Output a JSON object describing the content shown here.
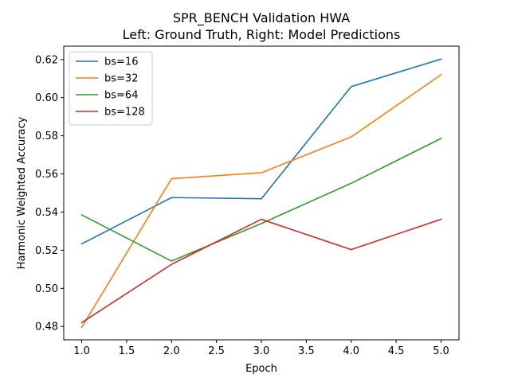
{
  "chart_data": {
    "type": "line",
    "title": "SPR_BENCH Validation HWA",
    "subtitle": "Left: Ground Truth, Right: Model Predictions",
    "xlabel": "Epoch",
    "ylabel": "Harmonic Weighted Accuracy",
    "xlim": [
      0.8,
      5.2
    ],
    "ylim": [
      0.473,
      0.627
    ],
    "x_ticks": [
      "1.0",
      "1.5",
      "2.0",
      "2.5",
      "3.0",
      "3.5",
      "4.0",
      "4.5",
      "5.0"
    ],
    "y_ticks": [
      "0.48",
      "0.50",
      "0.52",
      "0.54",
      "0.56",
      "0.58",
      "0.60",
      "0.62"
    ],
    "legend_position": "top-left",
    "grid": false,
    "x": [
      1,
      2,
      3,
      4,
      5
    ],
    "series": [
      {
        "name": "bs=16",
        "color": "#1f77b4",
        "values": [
          0.5233,
          0.5476,
          0.547,
          0.6058,
          0.6202
        ]
      },
      {
        "name": "bs=32",
        "color": "#ff7f0e",
        "values": [
          0.4795,
          0.5575,
          0.5606,
          0.5794,
          0.612
        ]
      },
      {
        "name": "bs=64",
        "color": "#2ca02c",
        "values": [
          0.5385,
          0.5143,
          0.534,
          0.5551,
          0.5786
        ]
      },
      {
        "name": "bs=128",
        "color": "#d62728",
        "values": [
          0.482,
          0.5126,
          0.5362,
          0.5203,
          0.5362
        ]
      }
    ]
  }
}
